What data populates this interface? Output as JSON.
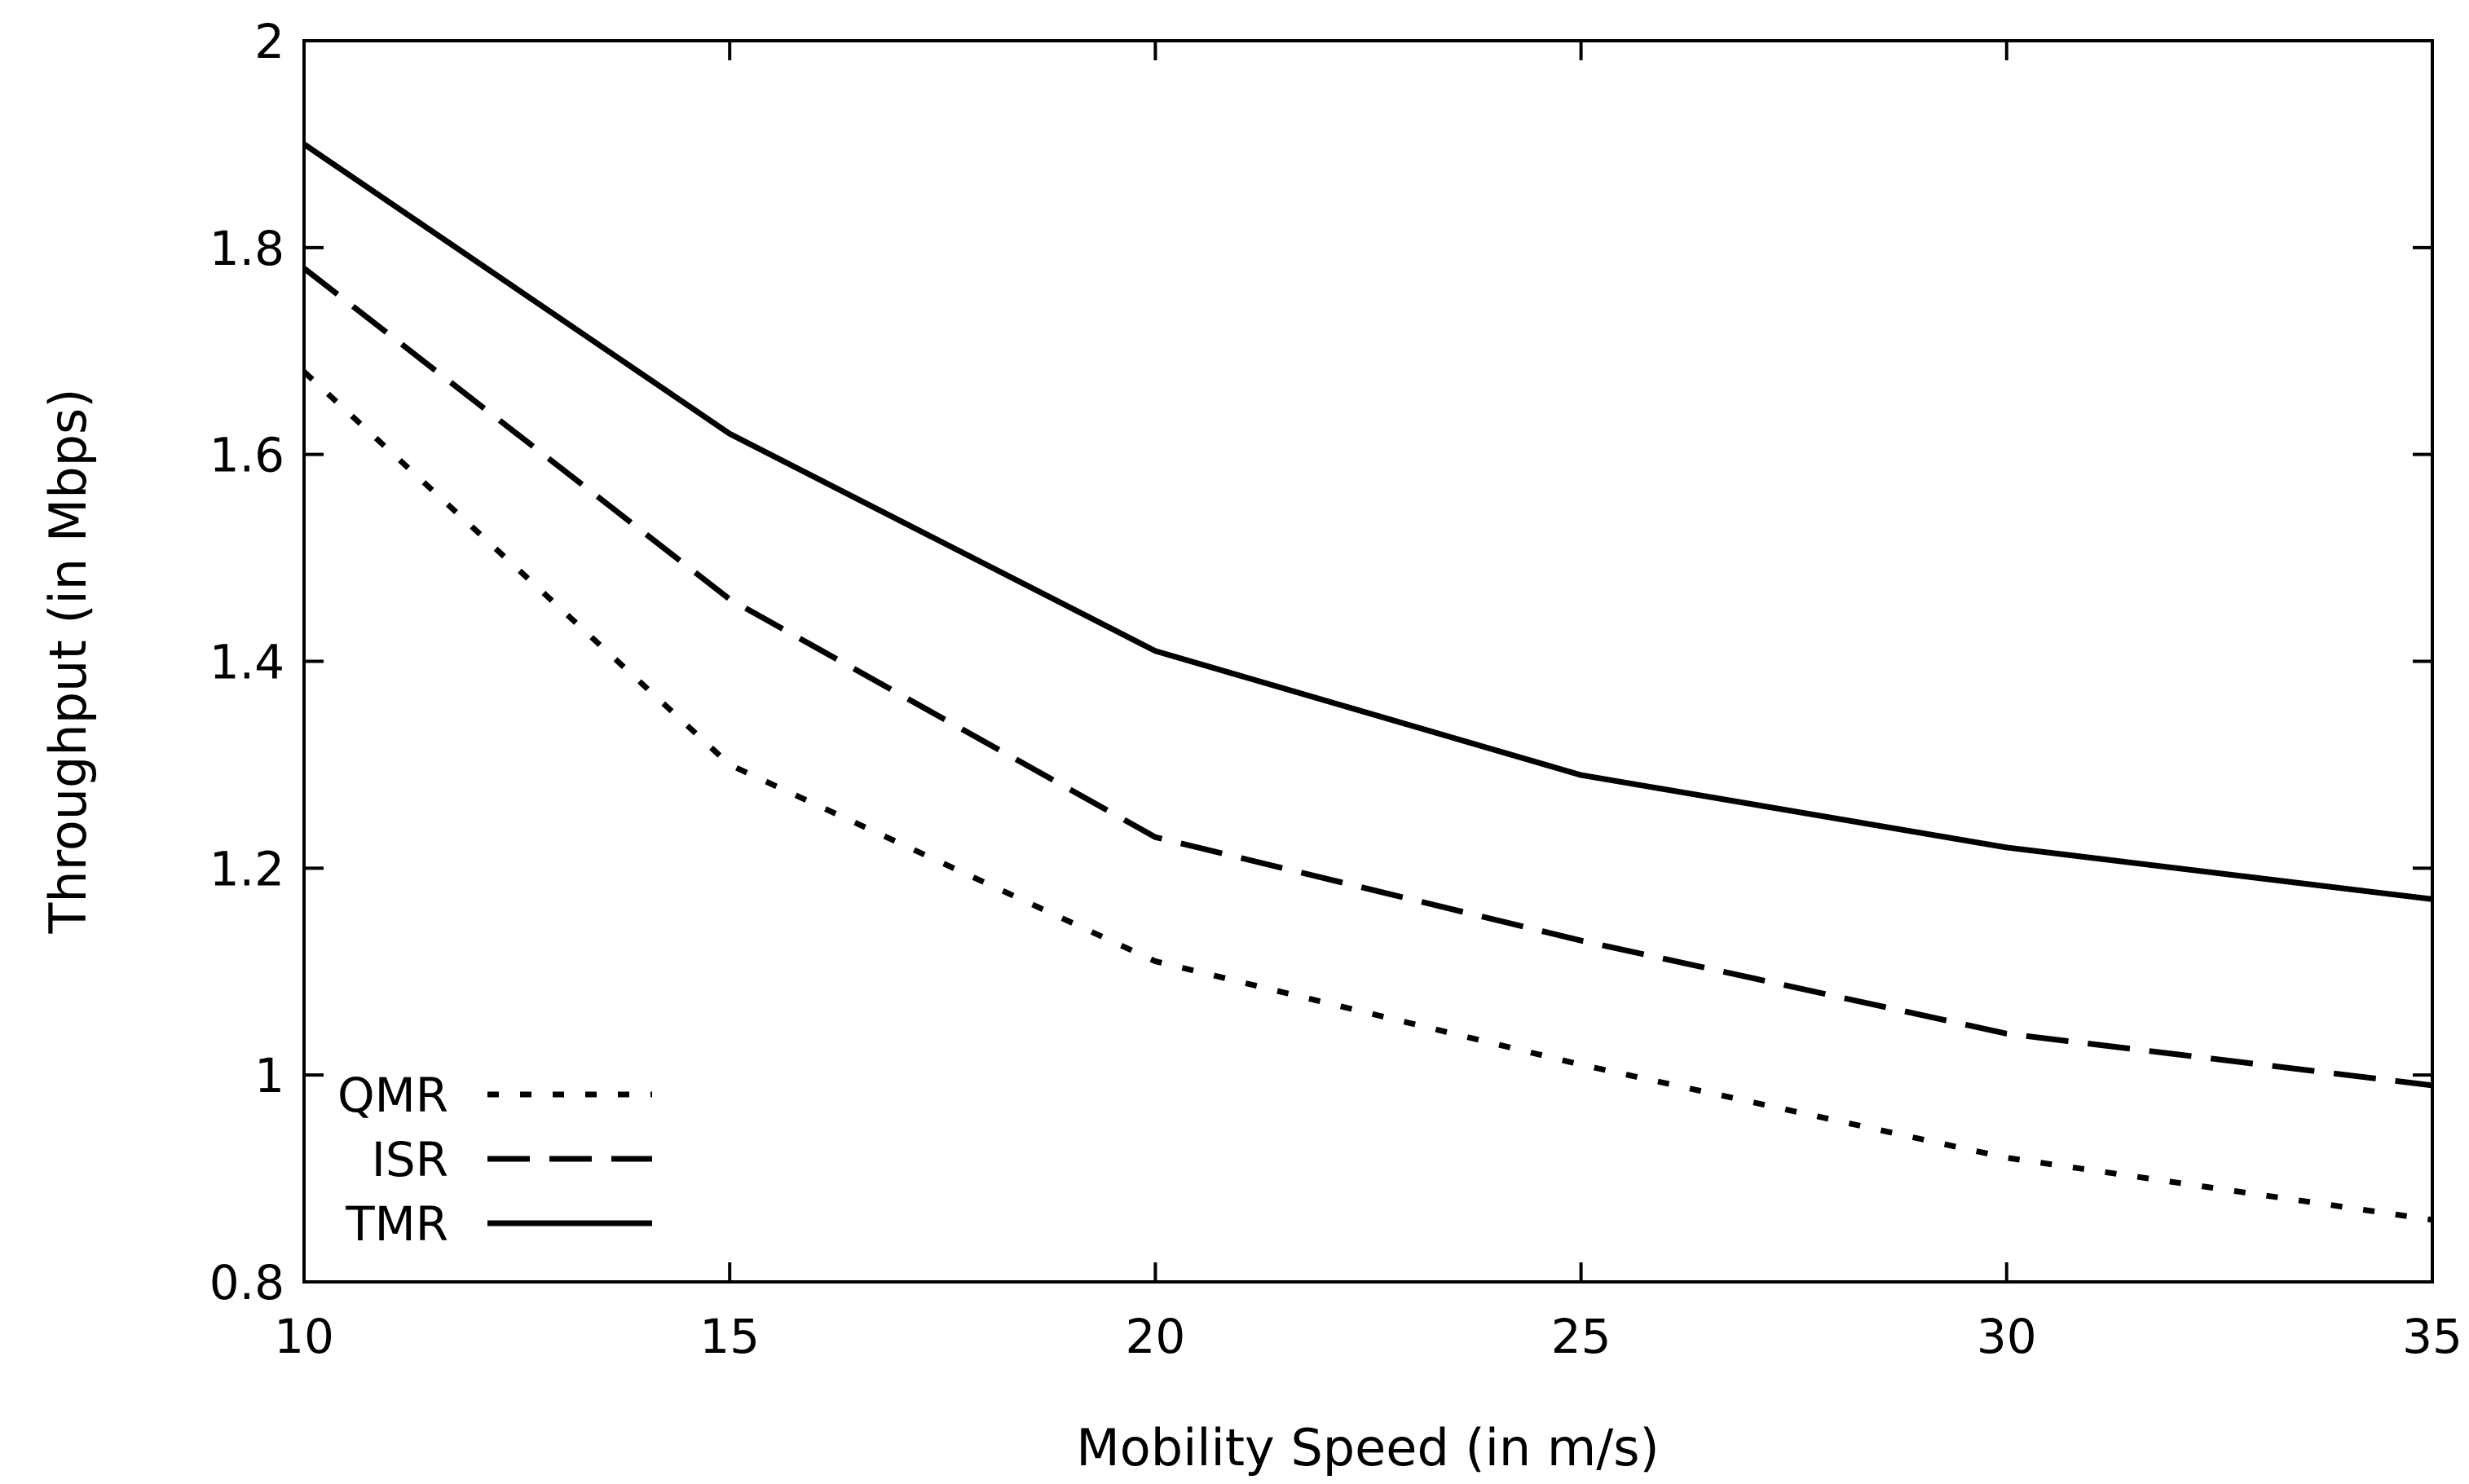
{
  "chart_data": {
    "type": "line",
    "title": "",
    "xlabel": "Mobility Speed (in m/s)",
    "ylabel": "Throughput (in Mbps)",
    "x": [
      10,
      15,
      20,
      25,
      30,
      35
    ],
    "xlim": [
      10,
      35
    ],
    "ylim": [
      0.8,
      2
    ],
    "xticks": [
      10,
      15,
      20,
      25,
      30,
      35
    ],
    "xtick_labels": [
      "10",
      "15",
      "20",
      "25",
      "30",
      "35"
    ],
    "yticks": [
      0.8,
      1,
      1.2,
      1.4,
      1.6,
      1.8,
      2
    ],
    "ytick_labels": [
      "0.8",
      "1",
      "1.2",
      "1.4",
      "1.6",
      "1.8",
      "2"
    ],
    "grid": false,
    "legend_position": "bottom-left",
    "series": [
      {
        "name": "QMR",
        "style": "dotted",
        "color": "#000000",
        "values": [
          1.68,
          1.3,
          1.11,
          1.01,
          0.92,
          0.86
        ]
      },
      {
        "name": "ISR",
        "style": "dashed",
        "color": "#000000",
        "values": [
          1.78,
          1.46,
          1.23,
          1.13,
          1.04,
          0.99
        ]
      },
      {
        "name": "TMR",
        "style": "solid",
        "color": "#000000",
        "values": [
          1.9,
          1.62,
          1.41,
          1.29,
          1.22,
          1.17
        ]
      }
    ]
  }
}
